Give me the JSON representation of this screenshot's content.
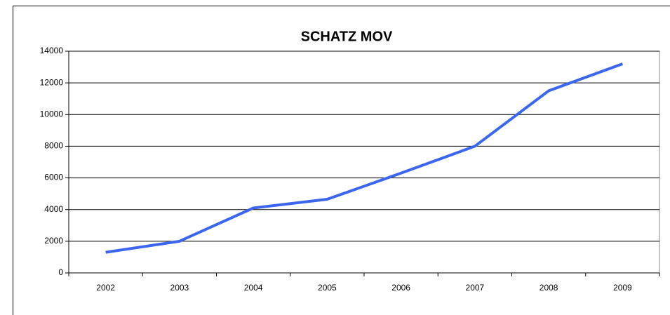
{
  "chart_data": {
    "type": "line",
    "title": "SCHATZ MOV",
    "categories": [
      "2002",
      "2003",
      "2004",
      "2005",
      "2006",
      "2007",
      "2008",
      "2009"
    ],
    "values": [
      1300,
      2000,
      4100,
      4650,
      6300,
      8000,
      11500,
      13200
    ],
    "color": "#3d66f0",
    "ylim": [
      0,
      14000
    ],
    "yticks": [
      0,
      2000,
      4000,
      6000,
      8000,
      10000,
      12000,
      14000
    ],
    "grid": true
  }
}
